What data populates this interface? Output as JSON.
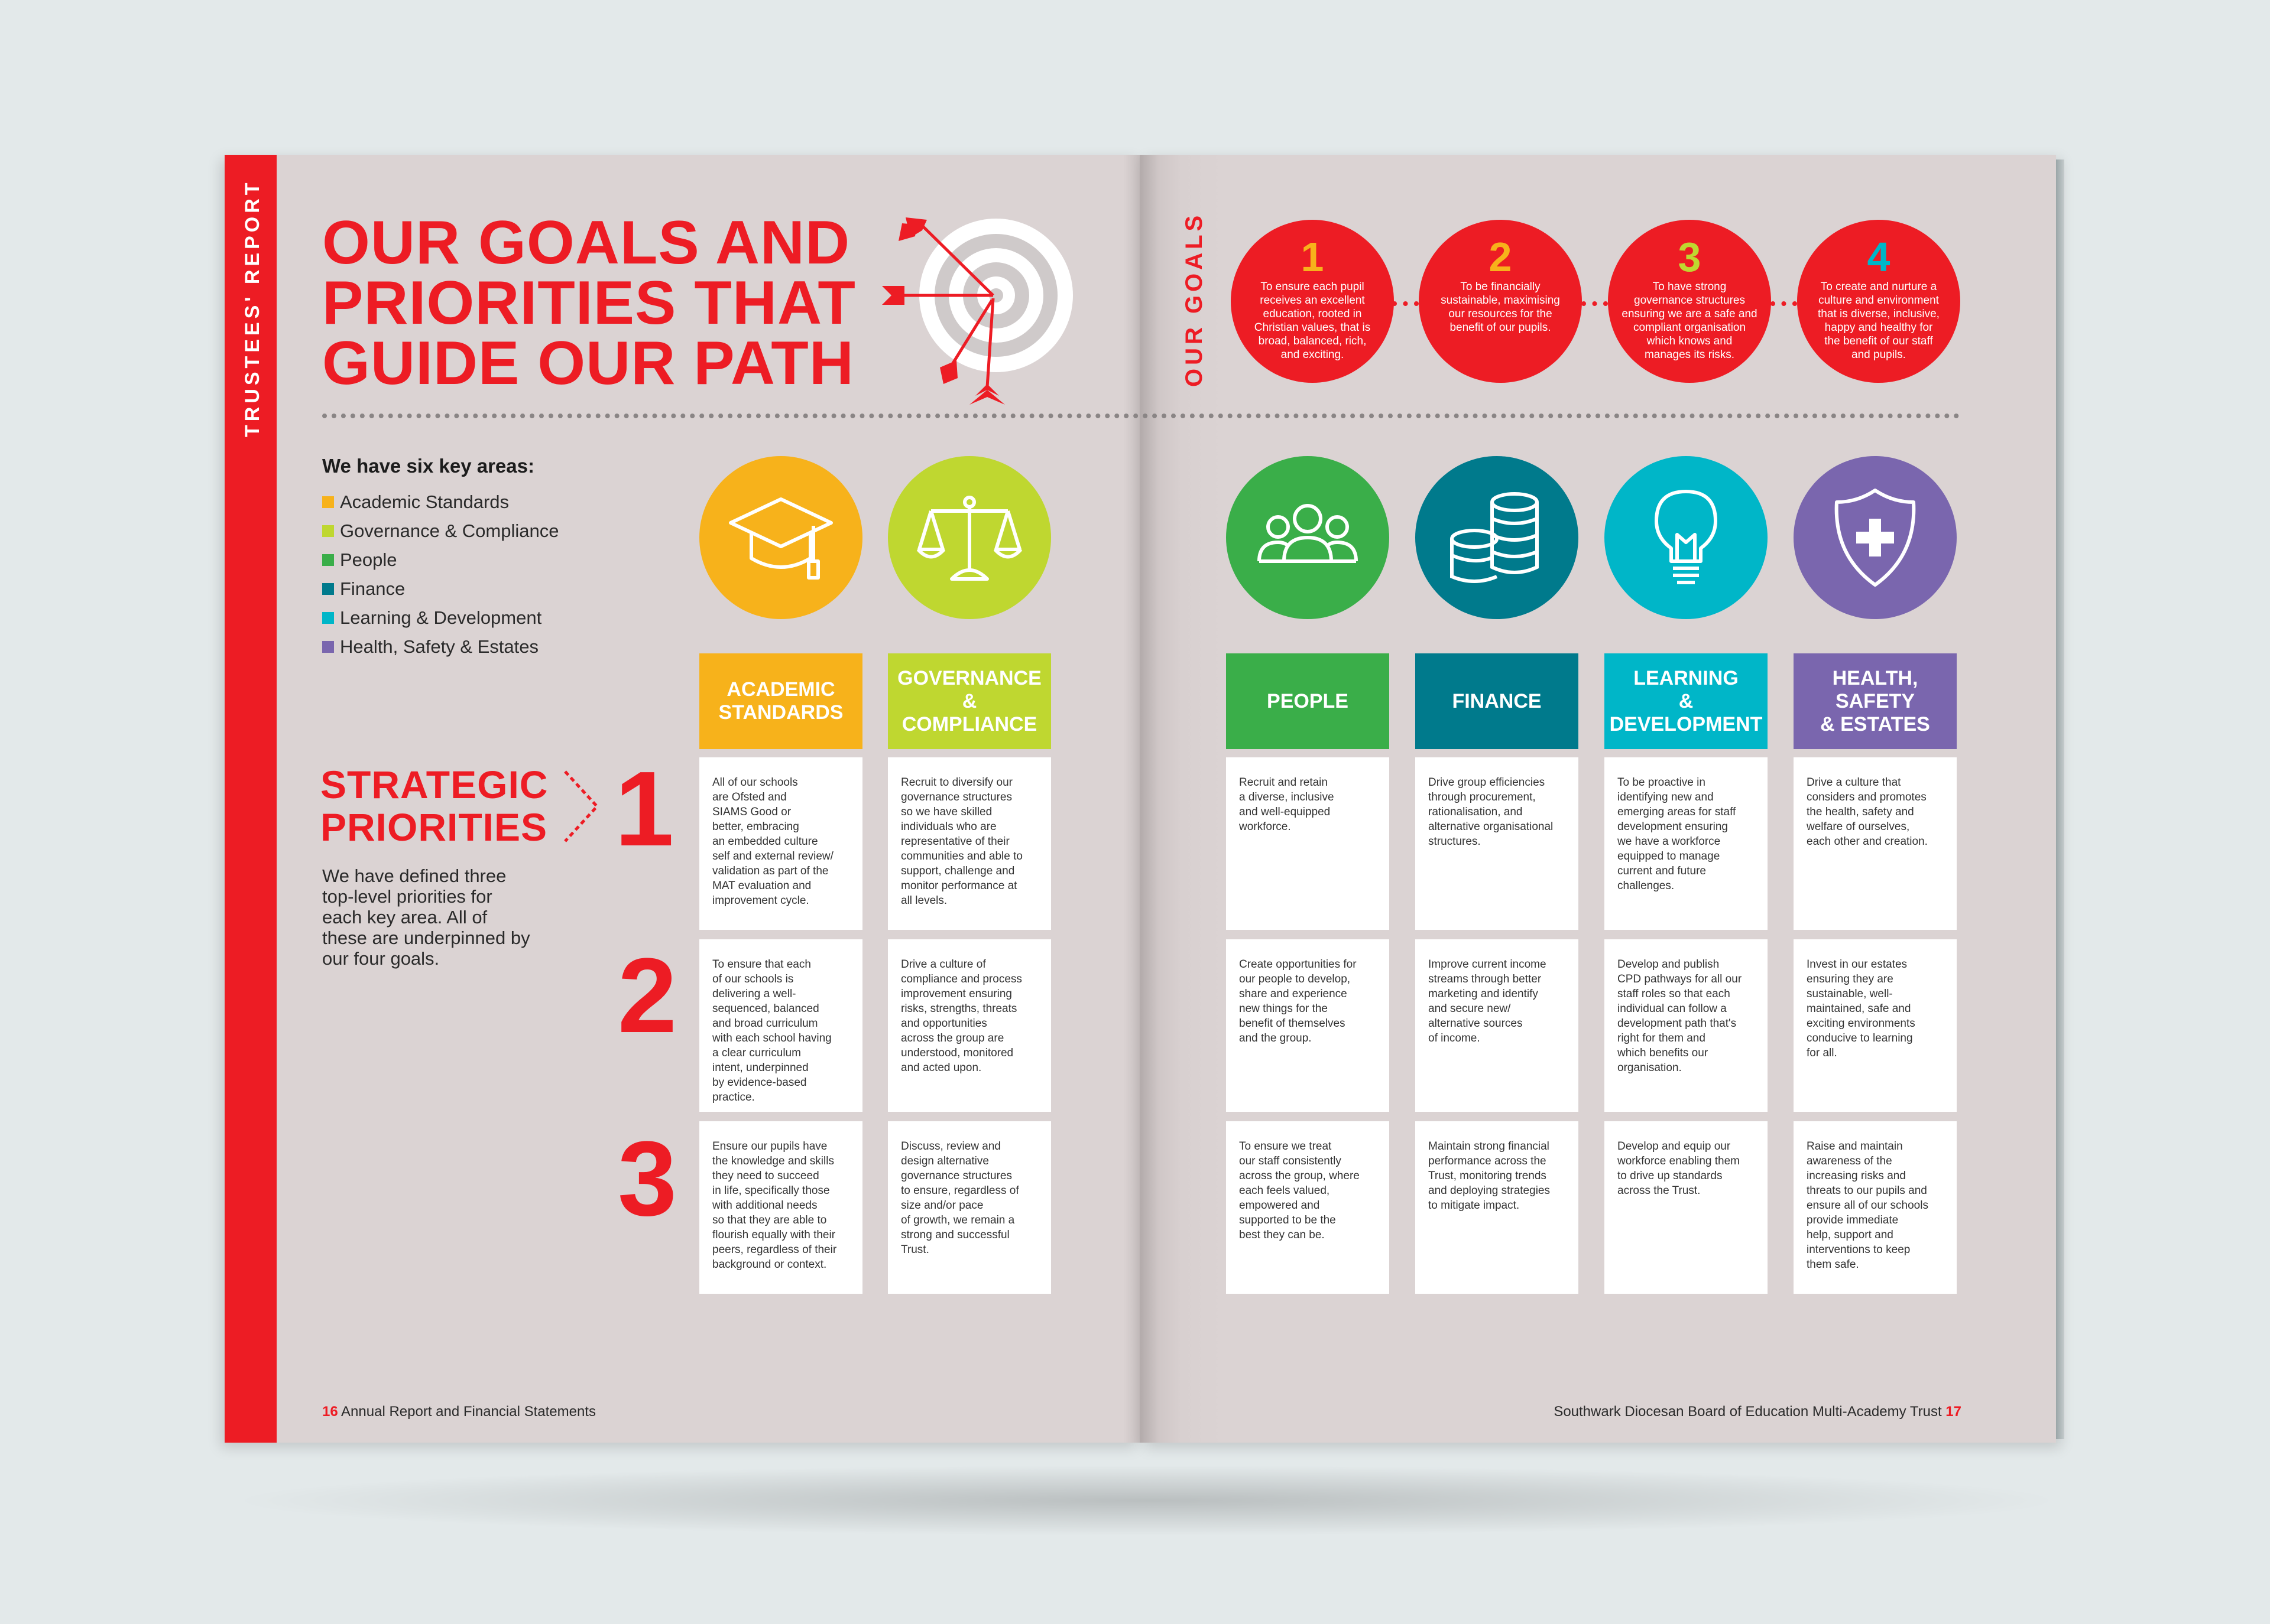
{
  "colors": {
    "red": "#ed1c24",
    "academic": "#f7b21b",
    "governance": "#bfd730",
    "people": "#3aae49",
    "finance": "#007a8c",
    "learning": "#00b6c8",
    "health": "#7a66ae"
  },
  "sidebar": {
    "label": "TRUSTEES' REPORT"
  },
  "headline": [
    "OUR GOALS AND",
    "PRIORITIES THAT",
    "GUIDE OUR PATH"
  ],
  "target_icon": "target-with-arrows-icon",
  "goals_section": {
    "label": "OUR GOALS",
    "goals": [
      {
        "number": "1",
        "number_color": "#f7b21b",
        "text": "To ensure each pupil\nreceives an excellent\neducation, rooted in\nChristian values, that is\nbroad, balanced, rich,\nand exciting."
      },
      {
        "number": "2",
        "number_color": "#f7b21b",
        "text": "To be financially\nsustainable, maximising\nour resources for the\nbenefit of our pupils."
      },
      {
        "number": "3",
        "number_color": "#bfd730",
        "text": "To have strong\ngovernance structures\nensuring we are a safe and\ncompliant organisation\nwhich knows and\nmanages its risks."
      },
      {
        "number": "4",
        "number_color": "#00b6c8",
        "text": "To create and nurture a\nculture and environment\nthat is diverse, inclusive,\nhappy and healthy for\nthe benefit of our staff\nand pupils."
      }
    ]
  },
  "key_areas": {
    "title": "We have six key areas:",
    "items": [
      {
        "label": "Academic Standards",
        "color": "#f7b21b"
      },
      {
        "label": "Governance & Compliance",
        "color": "#bfd730"
      },
      {
        "label": "People",
        "color": "#3aae49"
      },
      {
        "label": "Finance",
        "color": "#007a8c"
      },
      {
        "label": "Learning & Development",
        "color": "#00b6c8"
      },
      {
        "label": "Health, Safety & Estates",
        "color": "#7a66ae"
      }
    ]
  },
  "strategic": {
    "title": [
      "STRATEGIC",
      "PRIORITIES"
    ],
    "description": "We have defined three top-level priorities for each key area. All of these are underpinned by our four goals.",
    "numbers": [
      "1",
      "2",
      "3"
    ]
  },
  "columns": [
    {
      "icon": "graduation-cap-icon",
      "color": "#f7b21b",
      "heading": [
        "ACADEMIC",
        "STANDARDS"
      ],
      "priorities": [
        "All of our schools\nare Ofsted and\nSIAMS Good or\nbetter, embracing\nan embedded culture\nself and external review/\nvalidation as part of the\nMAT evaluation and\nimprovement cycle.",
        "To ensure that each\nof our schools is\ndelivering a well-\nsequenced, balanced\nand broad curriculum\nwith each school having\na clear curriculum\nintent, underpinned\nby evidence-based\npractice.",
        "Ensure our pupils have\nthe knowledge and skills\nthey need to succeed\nin life, specifically those\nwith additional needs\nso that they are able to\nflourish equally with their\npeers, regardless of their\nbackground or context."
      ]
    },
    {
      "icon": "scales-icon",
      "color": "#bfd730",
      "heading": [
        "GOVERNANCE",
        "&",
        "COMPLIANCE"
      ],
      "priorities": [
        "Recruit to diversify our\ngovernance structures\nso we have skilled\nindividuals who are\nrepresentative of their\ncommunities and able to\nsupport, challenge and\nmonitor performance at\nall levels.",
        "Drive a culture of\ncompliance and process\nimprovement ensuring\nrisks, strengths, threats\nand opportunities\nacross the group are\nunderstood, monitored\nand acted upon.",
        "Discuss, review and\ndesign alternative\ngovernance structures\nto ensure, regardless of\nsize and/or pace\nof growth, we remain a\nstrong and successful\nTrust."
      ]
    },
    {
      "icon": "people-group-icon",
      "color": "#3aae49",
      "heading": [
        "PEOPLE"
      ],
      "priorities": [
        "Recruit and retain\na diverse, inclusive\nand well-equipped\nworkforce.",
        "Create opportunities for\nour people to develop,\nshare and experience\nnew things for the\nbenefit of themselves\nand the group.",
        "To ensure we treat\nour staff consistently\nacross the group, where\neach feels valued,\nempowered and\nsupported to be the\nbest they can be."
      ]
    },
    {
      "icon": "coin-stacks-icon",
      "color": "#007a8c",
      "heading": [
        "FINANCE"
      ],
      "priorities": [
        "Drive group efficiencies\nthrough procurement,\nrationalisation, and\nalternative organisational\nstructures.",
        "Improve current income\nstreams through better\nmarketing and identify\nand secure new/\nalternative sources\nof income.",
        "Maintain strong financial\nperformance across the\nTrust, monitoring trends\nand deploying strategies\nto mitigate impact."
      ]
    },
    {
      "icon": "lightbulb-icon",
      "color": "#00b6c8",
      "heading": [
        "LEARNING",
        "&",
        "DEVELOPMENT"
      ],
      "priorities": [
        "To be proactive in\nidentifying new and\nemerging areas for staff\ndevelopment ensuring\nwe have a workforce\nequipped to manage\ncurrent and future\nchallenges.",
        "Develop and publish\nCPD pathways for all our\nstaff roles so that each\nindividual can follow a\ndevelopment path that's\nright for them and\nwhich benefits our\norganisation.",
        "Develop and equip our\nworkforce enabling them\nto drive up standards\nacross the Trust."
      ]
    },
    {
      "icon": "shield-cross-icon",
      "color": "#7a66ae",
      "heading": [
        "HEALTH,",
        "SAFETY",
        "& ESTATES"
      ],
      "priorities": [
        "Drive a culture that\nconsiders and promotes\nthe health, safety and\nwelfare of ourselves,\neach other and creation.",
        "Invest in our estates\nensuring they are\nsustainable, well-\nmaintained, safe and\nexciting environments\nconducive to learning\nfor all.",
        "Raise and maintain\nawareness of the\nincreasing risks and\nthreats to our pupils and\nensure all of our schools\nprovide immediate\nhelp, support and\ninterventions to keep\nthem safe."
      ]
    }
  ],
  "footer": {
    "left_page_number": "16",
    "left_text": "Annual Report and Financial Statements",
    "right_text": "Southwark Diocesan Board of Education Multi-Academy Trust",
    "right_page_number": "17"
  }
}
